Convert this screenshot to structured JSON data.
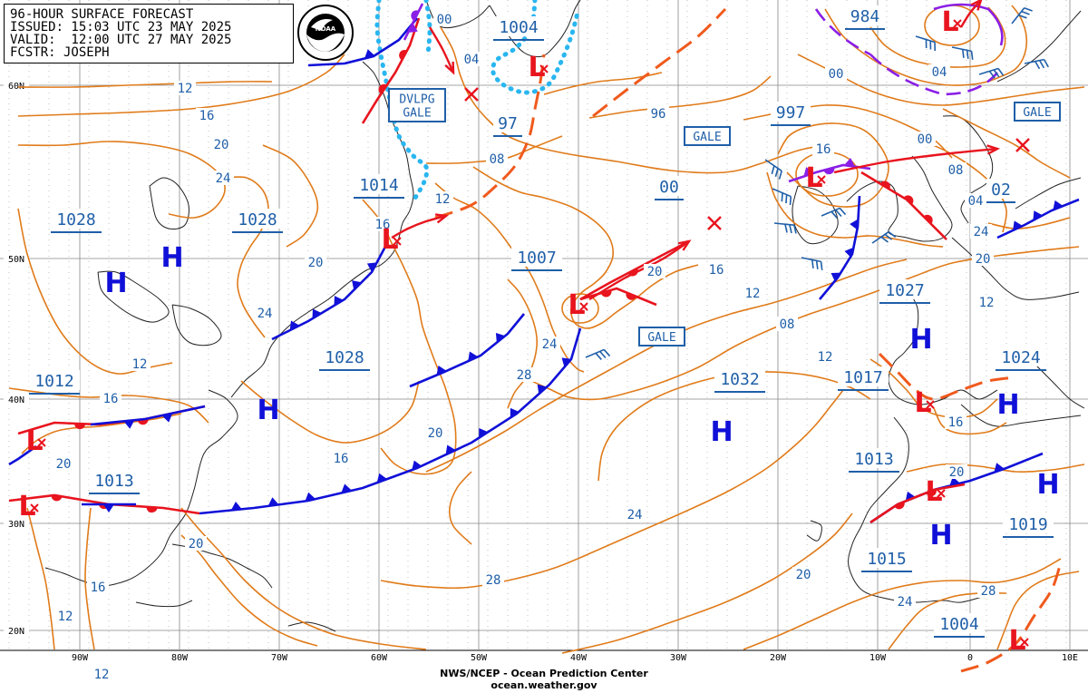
{
  "header": {
    "title": "96-HOUR SURFACE FORECAST",
    "issued": "ISSUED: 15:03 UTC 23 MAY 2025",
    "valid": "VALID:  12:00 UTC 27 MAY 2025",
    "forecaster": "FCSTR: JOSEPH",
    "logo_label": "NOAA"
  },
  "footer": {
    "line1": "NWS/NCEP - Ocean Prediction Center",
    "line2": "ocean.weather.gov"
  },
  "colors": {
    "isobar": "#e07b1a",
    "isobar_label": "#1f5fa8",
    "cold_front": "#1010d8",
    "warm_front": "#e8141e",
    "occluded": "#8a1ee6",
    "trough": "#f05a1e",
    "ice": "#29b6f0",
    "grid": "#888888"
  },
  "latitude_labels": [
    "60N",
    "50N",
    "40N",
    "30N",
    "20N"
  ],
  "longitude_labels": [
    "90W",
    "80W",
    "70W",
    "60W",
    "50W",
    "40W",
    "30W",
    "20W",
    "10W",
    "0",
    "10E"
  ],
  "pressure_centers": [
    {
      "id": "h-1028-w",
      "type": "H",
      "pressure": "1028"
    },
    {
      "id": "h-1028-c",
      "type": "H",
      "pressure": "1028"
    },
    {
      "id": "h-1028-s",
      "type": "H",
      "pressure": "1028"
    },
    {
      "id": "h-1032",
      "type": "H",
      "pressure": "1032"
    },
    {
      "id": "h-1027",
      "type": "H",
      "pressure": "1027"
    },
    {
      "id": "h-1024",
      "type": "H",
      "pressure": "1024"
    },
    {
      "id": "h-1019",
      "type": "H",
      "pressure": "1019"
    },
    {
      "id": "h-1013-africa",
      "type": "H",
      "pressure": "1013"
    },
    {
      "id": "l-1004-greenland",
      "type": "L",
      "pressure": "1004"
    },
    {
      "id": "l-984",
      "type": "L",
      "pressure": "984"
    },
    {
      "id": "l-997",
      "type": "L",
      "pressure": "997"
    },
    {
      "id": "l-1014",
      "type": "L",
      "pressure": "1014"
    },
    {
      "id": "l-1007",
      "type": "L",
      "pressure": "1007"
    },
    {
      "id": "l-1012",
      "type": "L",
      "pressure": "1012"
    },
    {
      "id": "l-1013",
      "type": "L",
      "pressure": "1013"
    },
    {
      "id": "l-1017",
      "type": "L",
      "pressure": "1017"
    },
    {
      "id": "l-1015",
      "type": "L",
      "pressure": "1015"
    },
    {
      "id": "l-1004-s",
      "type": "L",
      "pressure": "1004"
    }
  ],
  "center_pressure_labels": [
    "1004",
    "984",
    "97",
    "997",
    "1014",
    "00",
    "1028",
    "1028",
    "02",
    "1007",
    "1028",
    "1027",
    "1012",
    "1032",
    "1017",
    "1024",
    "1013",
    "1013",
    "1015",
    "1019",
    "1004"
  ],
  "isobar_labels": [
    "12",
    "16",
    "20",
    "24",
    "00",
    "04",
    "08",
    "12",
    "16",
    "20",
    "24",
    "12",
    "16",
    "20",
    "24",
    "28",
    "20",
    "16",
    "24",
    "28",
    "20",
    "16",
    "12",
    "12",
    "20",
    "24",
    "28",
    "20",
    "16",
    "12",
    "08",
    "12",
    "16",
    "20",
    "24",
    "04",
    "08",
    "00",
    "96",
    "00",
    "04",
    "16",
    "20",
    "12"
  ],
  "warnings": [
    "DVLPG\nGALE",
    "GALE",
    "GALE",
    "GALE"
  ]
}
